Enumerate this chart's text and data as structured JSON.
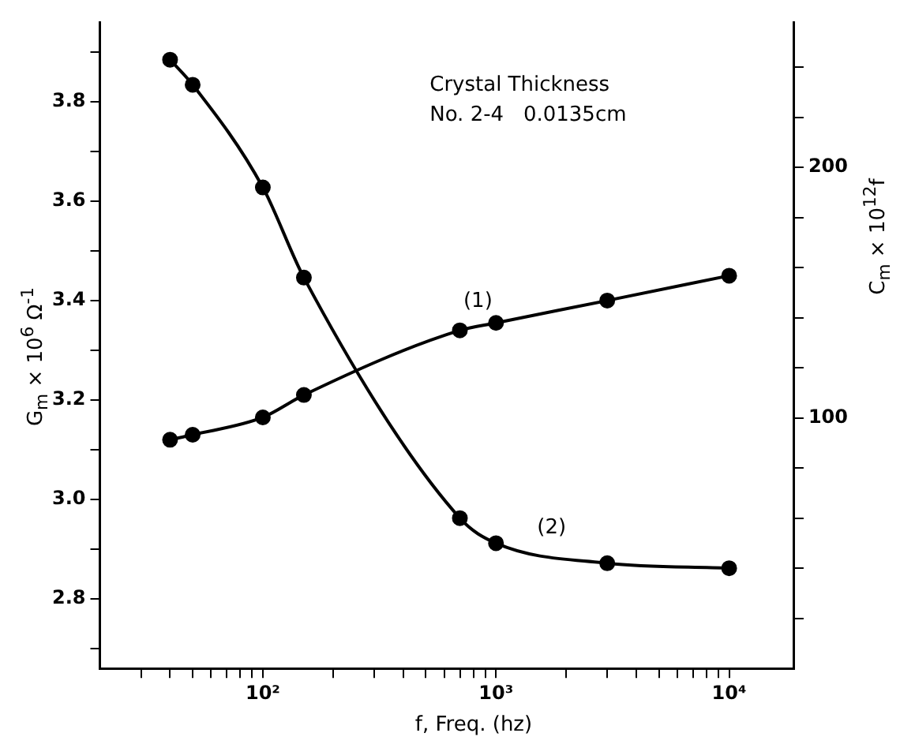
{
  "chart_data": {
    "type": "line",
    "xlabel": "f, Freq. (hz)",
    "ylabel": "G$_{m}$ × 10$^{6}$ Ω$^{-1}$",
    "y2label": "C$_{m}$ × 10$^{12}$f",
    "annotations": [
      "Crystal Thickness",
      "No. 2-4   0.0135cm"
    ],
    "log": "x",
    "grid": false,
    "legend": false,
    "marker": "circle",
    "line_style": "solid",
    "xlim": [
      20,
      19000
    ],
    "xticks": [
      {
        "value": 30,
        "label": null
      },
      {
        "value": 40,
        "label": null
      },
      {
        "value": 50,
        "label": null
      },
      {
        "value": 60,
        "label": null
      },
      {
        "value": 70,
        "label": null
      },
      {
        "value": 80,
        "label": null
      },
      {
        "value": 90,
        "label": null
      },
      {
        "value": 100,
        "label": "10²"
      },
      {
        "value": 200,
        "label": null
      },
      {
        "value": 300,
        "label": null
      },
      {
        "value": 400,
        "label": null
      },
      {
        "value": 500,
        "label": null
      },
      {
        "value": 600,
        "label": null
      },
      {
        "value": 700,
        "label": null
      },
      {
        "value": 800,
        "label": null
      },
      {
        "value": 900,
        "label": null
      },
      {
        "value": 1000,
        "label": "10³"
      },
      {
        "value": 2000,
        "label": null
      },
      {
        "value": 3000,
        "label": null
      },
      {
        "value": 4000,
        "label": null
      },
      {
        "value": 5000,
        "label": null
      },
      {
        "value": 6000,
        "label": null
      },
      {
        "value": 7000,
        "label": null
      },
      {
        "value": 8000,
        "label": null
      },
      {
        "value": 9000,
        "label": null
      },
      {
        "value": 10000,
        "label": "10⁴"
      }
    ],
    "ylim": [
      2.66,
      3.96
    ],
    "yticks": [
      {
        "value": 2.7,
        "label": null
      },
      2.8,
      {
        "value": 2.9,
        "label": null
      },
      {
        "value": 3,
        "label": "3.0"
      },
      {
        "value": 3.1,
        "label": null
      },
      3.2,
      {
        "value": 3.3,
        "label": null
      },
      3.4,
      {
        "value": 3.5,
        "label": null
      },
      3.6,
      {
        "value": 3.7,
        "label": null
      },
      3.8,
      {
        "value": 3.9,
        "label": null
      }
    ],
    "y2lim": [
      0,
      258
    ],
    "y2ticks": [
      {
        "value": 20,
        "label": null
      },
      {
        "value": 40,
        "label": null
      },
      {
        "value": 60,
        "label": null
      },
      {
        "value": 80,
        "label": null
      },
      100,
      {
        "value": 120,
        "label": null
      },
      {
        "value": 140,
        "label": null
      },
      {
        "value": 160,
        "label": null
      },
      {
        "value": 180,
        "label": null
      },
      200,
      {
        "value": 220,
        "label": null
      },
      {
        "value": 240,
        "label": null
      }
    ],
    "series": [
      {
        "name": "(1)",
        "color": "#000000",
        "x": [
          40,
          50,
          100,
          150,
          700,
          1000,
          3000,
          10000
        ],
        "values": [
          3.12,
          3.13,
          3.165,
          3.21,
          3.34,
          3.355,
          3.4,
          3.45
        ]
      },
      {
        "name": "(2)",
        "color": "#000000",
        "axis": "y2",
        "x": [
          40,
          50,
          100,
          150,
          700,
          1000,
          3000,
          10000
        ],
        "values": [
          243,
          233,
          192,
          156,
          60,
          50,
          42,
          40
        ]
      }
    ]
  }
}
